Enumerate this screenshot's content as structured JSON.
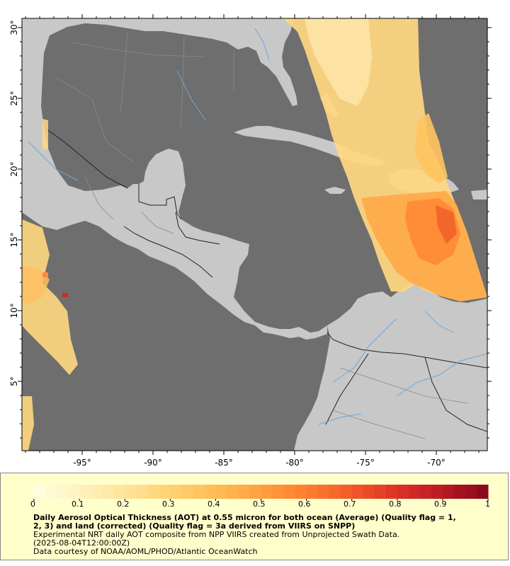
{
  "map": {
    "lon_labels": [
      "-95°",
      "-90°",
      "-85°",
      "-80°",
      "-75°",
      "-70°"
    ],
    "lat_labels": [
      "30°",
      "25°",
      "20°",
      "15°",
      "10°",
      "5°"
    ],
    "colors": {
      "ocean": "#6e6e6e",
      "land": "#c8c8c8",
      "border": "#222222",
      "river": "#6aa8e0",
      "state_line": "#8a8a8a"
    }
  },
  "legend": {
    "tick_labels": [
      "0",
      "0.1",
      "0.2",
      "0.3",
      "0.4",
      "0.5",
      "0.6",
      "0.7",
      "0.8",
      "0.9",
      "1"
    ],
    "colors": [
      "#ffffe0",
      "#fff2c0",
      "#ffe49a",
      "#ffd274",
      "#ffbc55",
      "#ffa040",
      "#ff7e30",
      "#f25a28",
      "#dc3226",
      "#b81a22",
      "#86081c"
    ],
    "title_line1": "Daily Aerosol Optical Thickness (AOT) at 0.55 micron for both ocean (Average) (Quality flag = 1,",
    "title_line2": "2, 3) and land (corrected) (Quality flag = 3a derived from VIIRS on SNPP)",
    "line3": "Experimental NRT daily AOT composite from NPP VIIRS created from Unprojected Swath Data.",
    "line4": "(2025-08-04T12:00:00Z)",
    "line5": "Data courtesy of NOAA/AOML/PHOD/Atlantic OceanWatch"
  }
}
